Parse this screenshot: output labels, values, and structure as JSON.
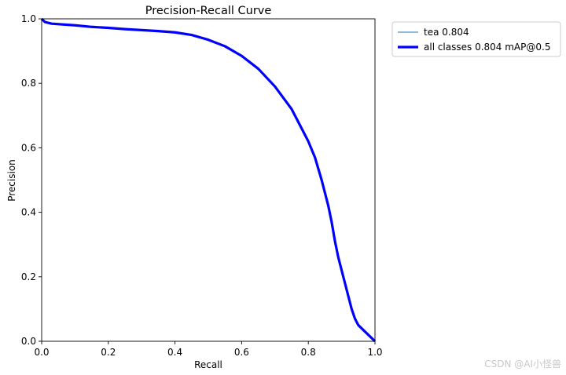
{
  "chart_data": {
    "type": "line",
    "title": "Precision-Recall Curve",
    "xlabel": "Recall",
    "ylabel": "Precision",
    "xlim": [
      0,
      1
    ],
    "ylim": [
      0,
      1
    ],
    "xticks": [
      "0.0",
      "0.2",
      "0.4",
      "0.6",
      "0.8",
      "1.0"
    ],
    "yticks": [
      "0.0",
      "0.2",
      "0.4",
      "0.6",
      "0.8",
      "1.0"
    ],
    "grid": false,
    "legend_position": "outside-top-right",
    "series": [
      {
        "name": "tea 0.804",
        "color": "#1f77b4",
        "style": "thin",
        "x": [
          0.0,
          0.01,
          0.03,
          0.1,
          0.15,
          0.2,
          0.25,
          0.3,
          0.35,
          0.4,
          0.45,
          0.5,
          0.55,
          0.6,
          0.65,
          0.7,
          0.75,
          0.78,
          0.8,
          0.82,
          0.84,
          0.86,
          0.87,
          0.88,
          0.89,
          0.9,
          0.91,
          0.92,
          0.93,
          0.94,
          0.95,
          0.97,
          1.0
        ],
        "y": [
          1.0,
          0.99,
          0.985,
          0.98,
          0.975,
          0.972,
          0.968,
          0.965,
          0.962,
          0.958,
          0.95,
          0.935,
          0.915,
          0.885,
          0.845,
          0.79,
          0.72,
          0.66,
          0.62,
          0.57,
          0.5,
          0.42,
          0.37,
          0.31,
          0.26,
          0.22,
          0.18,
          0.14,
          0.1,
          0.07,
          0.05,
          0.03,
          0.0
        ]
      },
      {
        "name": "all classes 0.804 mAP@0.5",
        "color": "#0000ff",
        "style": "thick",
        "x": [
          0.0,
          0.01,
          0.03,
          0.1,
          0.15,
          0.2,
          0.25,
          0.3,
          0.35,
          0.4,
          0.45,
          0.5,
          0.55,
          0.6,
          0.65,
          0.7,
          0.75,
          0.78,
          0.8,
          0.82,
          0.84,
          0.86,
          0.87,
          0.88,
          0.89,
          0.9,
          0.91,
          0.92,
          0.93,
          0.94,
          0.95,
          0.97,
          1.0
        ],
        "y": [
          1.0,
          0.99,
          0.985,
          0.98,
          0.975,
          0.972,
          0.968,
          0.965,
          0.962,
          0.958,
          0.95,
          0.935,
          0.915,
          0.885,
          0.845,
          0.79,
          0.72,
          0.66,
          0.62,
          0.57,
          0.5,
          0.42,
          0.37,
          0.31,
          0.26,
          0.22,
          0.18,
          0.14,
          0.1,
          0.07,
          0.05,
          0.03,
          0.0
        ]
      }
    ]
  },
  "watermark": "CSDN @AI小怪兽"
}
